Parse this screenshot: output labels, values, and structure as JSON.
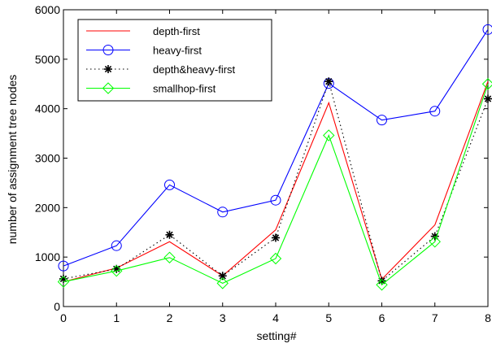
{
  "chart_data": {
    "type": "line",
    "title": "",
    "xlabel": "setting#",
    "ylabel": "number of assignment tree nodes",
    "xlim": [
      0,
      8
    ],
    "ylim": [
      0,
      6000
    ],
    "x": [
      0,
      1,
      2,
      3,
      4,
      5,
      6,
      7,
      8
    ],
    "x_ticks": [
      "0",
      "1",
      "2",
      "3",
      "4",
      "5",
      "6",
      "7",
      "8"
    ],
    "y_ticks": [
      "0",
      "1000",
      "2000",
      "3000",
      "4000",
      "5000",
      "6000"
    ],
    "grid": false,
    "legend_position": "top-left",
    "series": [
      {
        "name": "depth-first",
        "color": "#ff0000",
        "line_style": "solid",
        "marker": "none",
        "values": [
          500,
          780,
          1310,
          620,
          1550,
          4120,
          550,
          1650,
          4550
        ]
      },
      {
        "name": "heavy-first",
        "color": "#0000ff",
        "line_style": "solid",
        "marker": "circle",
        "values": [
          820,
          1230,
          2460,
          1910,
          2150,
          4510,
          3770,
          3950,
          5600
        ]
      },
      {
        "name": "depth&heavy-first",
        "color": "#000000",
        "line_style": "dotted",
        "marker": "star",
        "values": [
          560,
          760,
          1450,
          620,
          1390,
          4550,
          520,
          1420,
          4200
        ]
      },
      {
        "name": "smallhop-first",
        "color": "#00ff00",
        "line_style": "solid",
        "marker": "diamond",
        "values": [
          500,
          720,
          990,
          470,
          970,
          3460,
          440,
          1310,
          4500
        ]
      }
    ]
  }
}
